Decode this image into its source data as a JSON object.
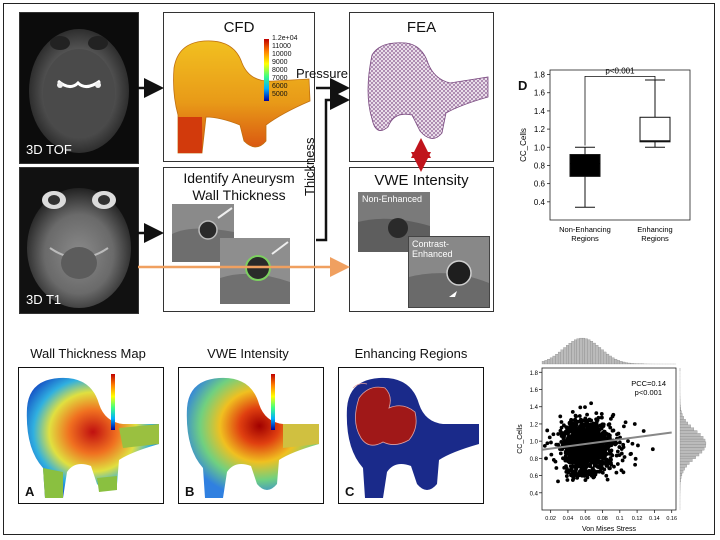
{
  "workflow": {
    "mri_top_label": "3D TOF",
    "mri_bottom_label": "3D T1",
    "cfd_title": "CFD",
    "fea_title": "FEA",
    "thickness_title_line1": "Identify Aneurysm",
    "thickness_title_line2": "Wall Thickness",
    "vwe_title": "VWE Intensity",
    "vwe_non_enhanced": "Non-Enhanced",
    "vwe_contrast_enhanced": "Contrast-Enhanced",
    "arrow_pressure": "Pressure",
    "arrow_thickness": "Thickness",
    "colorbar_ticks": [
      "1.2e+04",
      "11000",
      "10000",
      "9000",
      "8000",
      "7000",
      "6000",
      "5000"
    ]
  },
  "panels": {
    "a_title": "Wall Thickness Map",
    "b_title": "VWE Intensity",
    "c_title": "Enhancing Regions",
    "a_letter": "A",
    "b_letter": "B",
    "c_letter": "C",
    "d_letter": "D"
  },
  "colors": {
    "arrow_black": "#111111",
    "arrow_orange": "#f0a060",
    "arrow_red": "#c0141c",
    "enhancing_navy": "#1a2a8a",
    "enhancing_red": "#a01818"
  },
  "chart_data": [
    {
      "type": "box",
      "title": "",
      "ylabel": "CC_Cells",
      "ylim": [
        0.2,
        1.85
      ],
      "yticks": [
        0.4,
        0.6,
        0.8,
        1.0,
        1.2,
        1.4,
        1.6,
        1.8
      ],
      "categories": [
        "Non-Enhancing Regions",
        "Enhancing Regions"
      ],
      "boxes": [
        {
          "name": "Non-Enhancing Regions",
          "min": 0.34,
          "q1": 0.68,
          "median": 0.82,
          "q3": 0.92,
          "max": 1.0,
          "fill": "#000000"
        },
        {
          "name": "Enhancing Regions",
          "min": 1.0,
          "q1": 1.06,
          "median": 1.07,
          "q3": 1.33,
          "max": 1.74,
          "fill": "#ffffff"
        }
      ],
      "annotation": "p<0.001"
    },
    {
      "type": "scatter",
      "title": "",
      "xlabel": "Von Mises Stress",
      "ylabel": "CC_Cells",
      "xlim": [
        0.01,
        0.165
      ],
      "ylim": [
        0.2,
        1.85
      ],
      "xticks": [
        0.02,
        0.04,
        0.06,
        0.08,
        0.1,
        0.12,
        0.14,
        0.16
      ],
      "yticks": [
        0.4,
        0.6,
        0.8,
        1.0,
        1.2,
        1.4,
        1.6,
        1.8
      ],
      "annotation_line1": "PCC=0.14",
      "annotation_line2": "p<0.001",
      "fit_line": {
        "x": [
          0.01,
          0.16
        ],
        "y": [
          0.9,
          1.1
        ]
      },
      "approx_distribution": {
        "x_mode": 0.055,
        "y_mode": 0.95
      }
    }
  ]
}
